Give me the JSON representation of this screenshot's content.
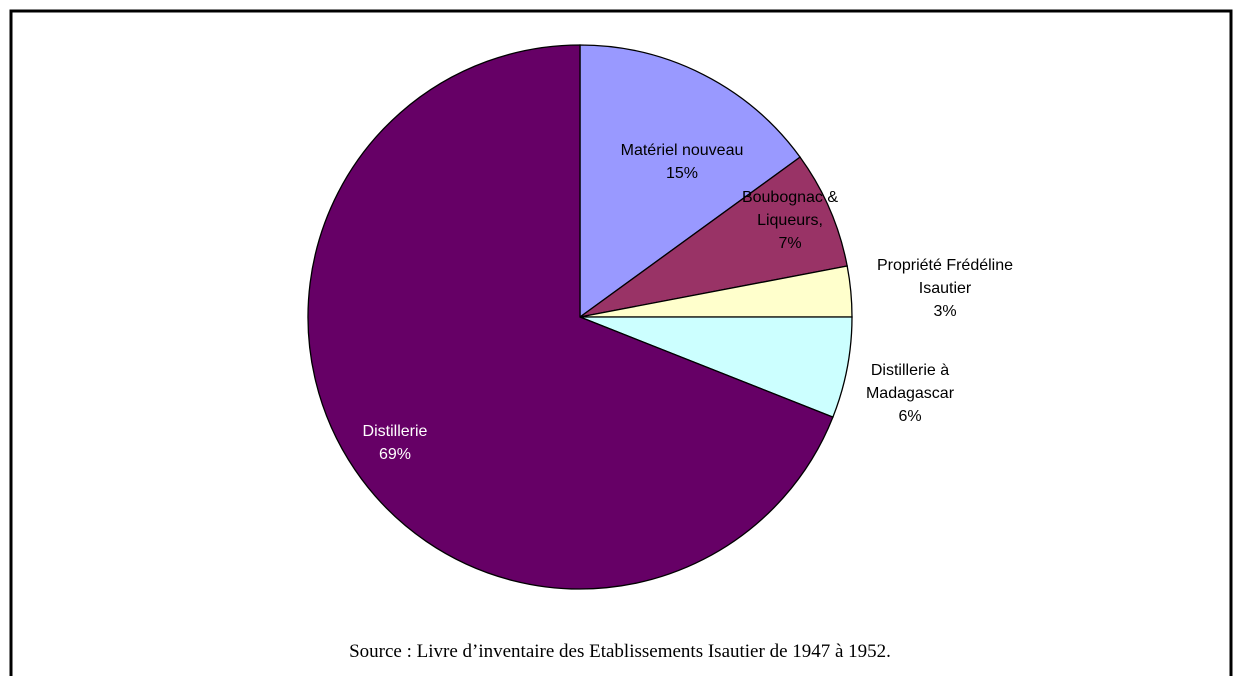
{
  "chart_data": {
    "type": "pie",
    "categories": [
      "Matériel nouveau",
      "Boubognac & Liqueurs,",
      "Propriété Frédéline Isautier",
      "Distillerie à Madagascar",
      "Distillerie"
    ],
    "values": [
      15,
      7,
      3,
      6,
      69
    ],
    "value_labels": [
      "15%",
      "7%",
      "3%",
      "6%",
      "69%"
    ],
    "colors": [
      "#9999ff",
      "#993366",
      "#ffffcc",
      "#ccffff",
      "#660066"
    ],
    "caption": "Source : Livre d’inventaire des Etablissements Isautier de 1947 à 1952."
  }
}
